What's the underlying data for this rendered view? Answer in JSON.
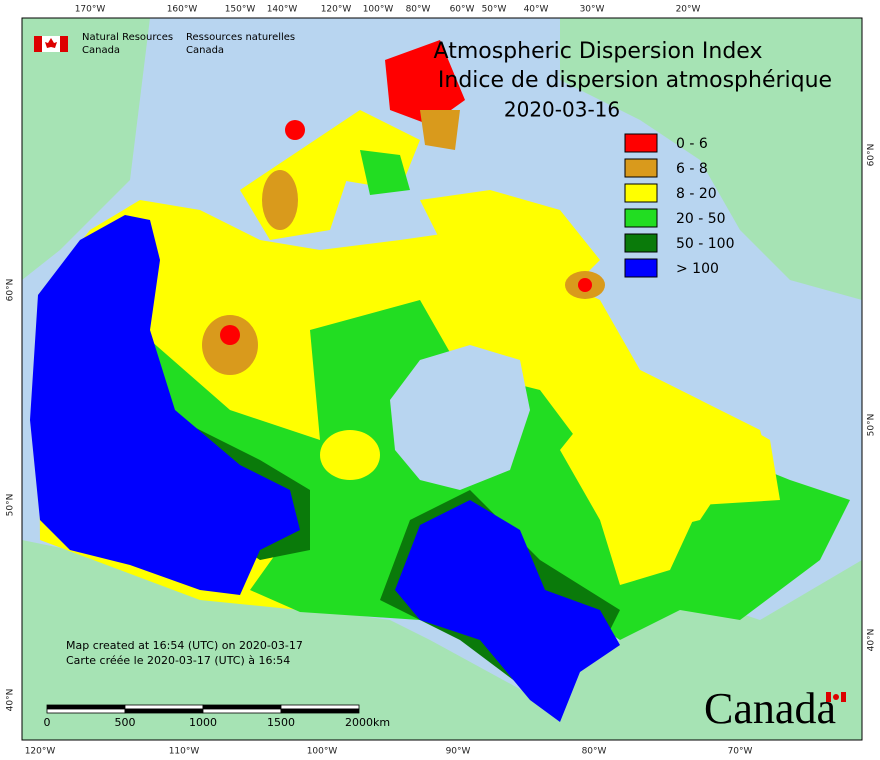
{
  "agency": {
    "en": [
      "Natural Resources",
      "Canada"
    ],
    "fr": [
      "Ressources naturelles",
      "Canada"
    ]
  },
  "title": [
    "Atmospheric Dispersion Index",
    "Indice de dispersion atmosphérique",
    "2020-03-16"
  ],
  "legend": [
    {
      "label": "0 - 6",
      "color": "#ff0000"
    },
    {
      "label": "6 - 8",
      "color": "#d99a1c"
    },
    {
      "label": "8 - 20",
      "color": "#ffff00"
    },
    {
      "label": "20 - 50",
      "color": "#22dd22"
    },
    {
      "label": "50 - 100",
      "color": "#0a7a0a"
    },
    {
      "label": "> 100",
      "color": "#0000ff"
    }
  ],
  "graticule": {
    "top": [
      "170°W",
      "160°W",
      "150°W",
      "140°W",
      "120°W",
      "100°W",
      "80°W",
      "60°W",
      "50°W",
      "40°W",
      "30°W",
      "20°W"
    ],
    "bottom": [
      "120°W",
      "110°W",
      "100°W",
      "90°W",
      "80°W",
      "70°W"
    ],
    "left": [
      "60°N",
      "50°N",
      "40°N"
    ],
    "right": [
      "60°N",
      "50°N",
      "40°N"
    ]
  },
  "notes": [
    "Map created at 16:54 (UTC) on 2020-03-17",
    "Carte créée le 2020-03-17 (UTC) à 16:54"
  ],
  "scale_bar": {
    "labels": [
      "0",
      "500",
      "1000",
      "1500",
      "2000"
    ],
    "unit": "km"
  },
  "wordmark": "Canada"
}
